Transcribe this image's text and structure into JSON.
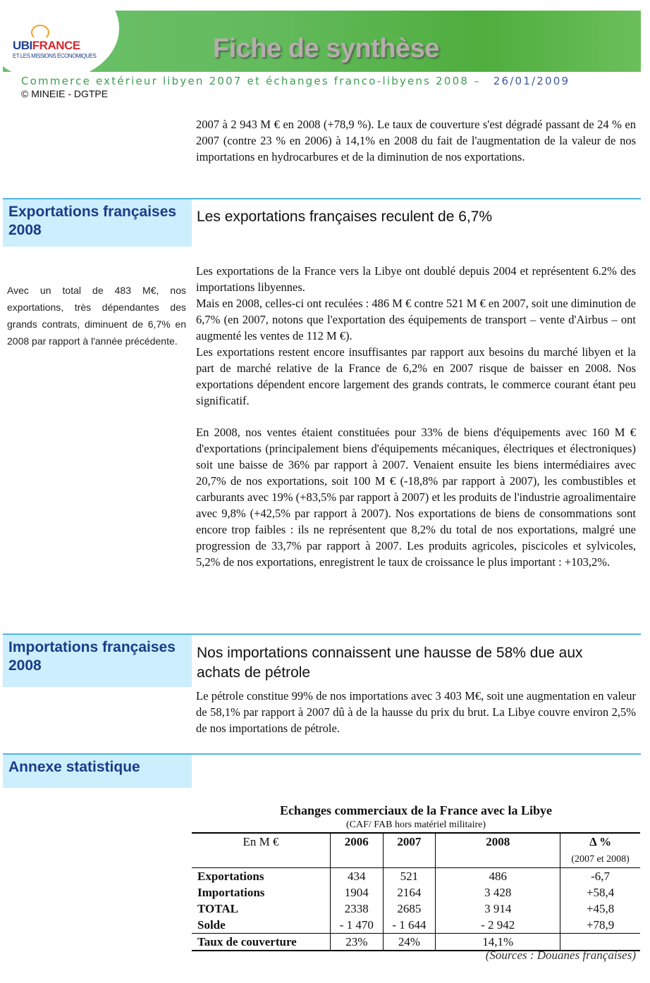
{
  "header": {
    "logo_text_1": "UBI",
    "logo_text_2": "FRANCE",
    "logo_sub": "ET LES MISSIONS ÉCONOMIQUES",
    "title": "Fiche de synthèse",
    "subtitle": "Commerce extérieur libyen 2007 et échanges franco-libyens 2008 –",
    "date": "26/01/2009",
    "copyright": "© MINEIE - DGTPE"
  },
  "intro": "2007 à 2 943 M € en 2008 (+78,9 %). Le taux de couverture s'est dégradé passant de 24 % en 2007 (contre 23 % en 2006) à 14,1% en 2008 du fait de l'augmentation de la valeur de nos importations en hydrocarbures et de la diminution de nos exportations.",
  "exports": {
    "section": "Exportations françaises 2008",
    "heading": "Les exportations françaises reculent de 6,7%",
    "side": "Avec un total de 483 M€, nos exportations, très dépendantes des grands contrats, diminuent de 6,7% en 2008 par rapport à l'année précédente.",
    "p1": "Les exportations de la France vers la Libye ont doublé depuis 2004 et représentent 6.2% des importations libyennes.",
    "p2": "Mais en 2008, celles-ci ont reculées : 486 M € contre 521 M € en 2007, soit une diminution de 6,7% (en 2007, notons que l'exportation des équipements de transport – vente d'Airbus – ont augmenté les ventes de 112 M €).",
    "p3": "Les exportations restent encore insuffisantes par rapport aux besoins du marché libyen et la part de marché relative de la France de 6,2% en 2007 risque de baisser en 2008. Nos exportations dépendent encore largement des grands contrats, le commerce courant étant peu significatif.",
    "p4": "En 2008, nos ventes étaient constituées pour 33% de biens d'équipements avec 160 M € d'exportations (principalement biens d'équipements mécaniques, électriques et électroniques) soit une baisse de 36% par rapport à 2007. Venaient ensuite les biens intermédiaires avec 20,7% de nos exportations, soit 100 M € (-18,8% par rapport à 2007), les combustibles et carburants avec 19% (+83,5% par rapport à 2007) et les produits de l'industrie agroalimentaire avec 9,8% (+42,5% par rapport à 2007). Nos exportations de biens de consommations sont encore trop faibles : ils ne représentent que 8,2% du total de nos exportations, malgré une progression de 33,7% par rapport à 2007. Les produits agricoles, piscicoles et sylvicoles, 5,2% de nos exportations, enregistrent le taux de croissance le plus important : +103,2%."
  },
  "imports": {
    "section": "Importations françaises 2008",
    "heading": "Nos importations connaissent une hausse de 58% due aux achats de pétrole",
    "p1": "Le pétrole constitue 99% de nos importations avec 3 403 M€, soit une augmentation en valeur de 58,1% par rapport à 2007 dû à de la hausse du prix du brut. La Libye couvre environ 2,5% de nos importations de pétrole."
  },
  "annexe": {
    "section": "Annexe statistique",
    "table_title": "Echanges commerciaux de la France avec la Libye",
    "table_subtitle": "(CAF/ FAB hors matériel militaire)",
    "columns": [
      "En M €",
      "2006",
      "2007",
      "2008",
      "Δ %"
    ],
    "delta_note": "(2007 et 2008)",
    "rows": [
      [
        "Exportations",
        "434",
        "521",
        "486",
        "-6,7"
      ],
      [
        "Importations",
        "1904",
        "2164",
        "3 428",
        "+58,4"
      ],
      [
        "TOTAL",
        "2338",
        "2685",
        "3 914",
        "+45,8"
      ],
      [
        "Solde",
        "- 1 470",
        "- 1 644",
        "- 2 942",
        "+78,9"
      ],
      [
        "Taux de couverture",
        "23%",
        "24%",
        "14,1%",
        ""
      ]
    ],
    "source": "(Sources : Douanes françaises)"
  }
}
